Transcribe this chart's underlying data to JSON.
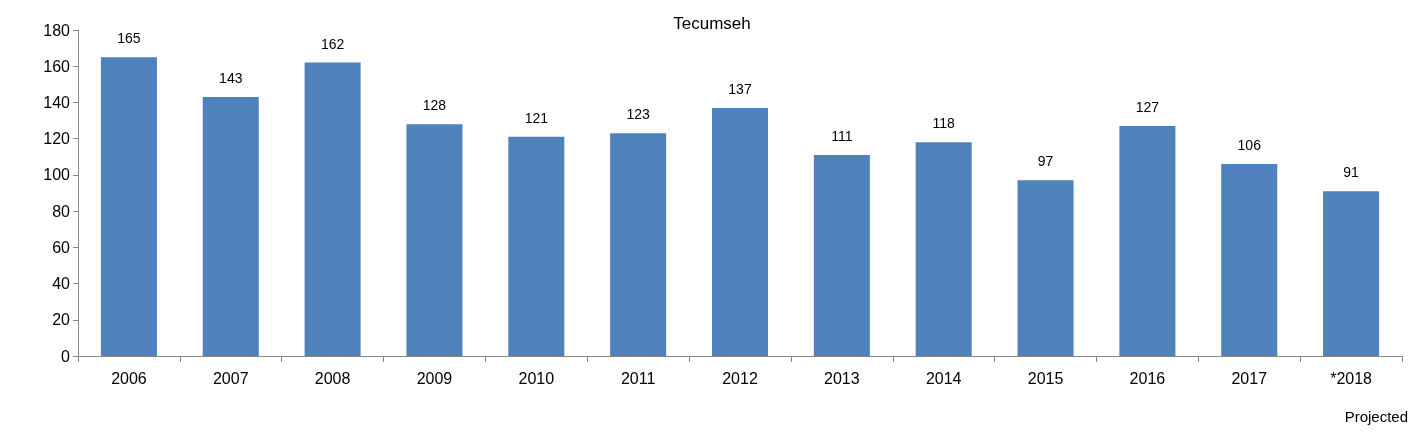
{
  "chart_data": {
    "type": "bar",
    "title": "Tecumseh",
    "categories": [
      "2006",
      "2007",
      "2008",
      "2009",
      "2010",
      "2011",
      "2012",
      "2013",
      "2014",
      "2015",
      "2016",
      "2017",
      "*2018"
    ],
    "values": [
      165,
      143,
      162,
      128,
      121,
      123,
      137,
      111,
      118,
      97,
      127,
      106,
      91
    ],
    "color": "#4f81bd",
    "ylim": [
      0,
      180
    ],
    "yticks": [
      0,
      20,
      40,
      60,
      80,
      100,
      120,
      140,
      160,
      180
    ],
    "grid": false,
    "data_labels": true,
    "annotations": [
      "Projected"
    ]
  }
}
